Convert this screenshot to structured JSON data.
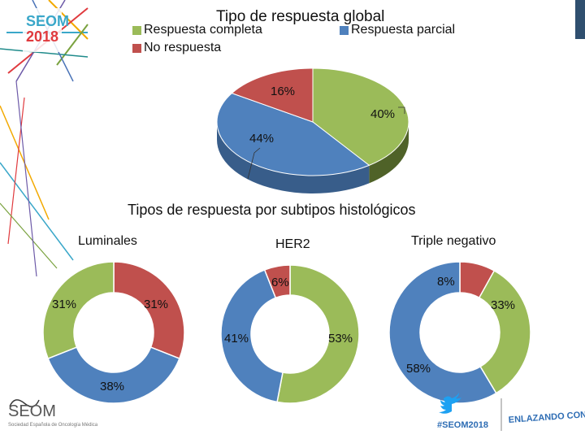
{
  "logos": {
    "seom_top_line1": "SEOM",
    "seom_top_line2": "2018",
    "seom_bottom": "SEOM",
    "seom_bottom_sub": "Sociedad Española de Oncología Médica",
    "hashtag": "#SEOM2018",
    "slogan": "ENLAZANDO CONOCIMIENTO"
  },
  "colors": {
    "green": "#9bbb59",
    "blue": "#4f81bd",
    "red": "#c0504d",
    "green_dark": "#4f6228",
    "blue_dark": "#385d8a"
  },
  "chart_data": [
    {
      "type": "pie",
      "title": "Tipo de respuesta global",
      "legend": [
        "Respuesta completa",
        "Respuesta parcial",
        "No respuesta"
      ],
      "slices": [
        {
          "name": "Respuesta completa",
          "value": 40,
          "label": "40%"
        },
        {
          "name": "Respuesta parcial",
          "value": 44,
          "label": "44%"
        },
        {
          "name": "No respuesta",
          "value": 16,
          "label": "16%"
        }
      ]
    },
    {
      "type": "pie",
      "title": "Luminales",
      "slices": [
        {
          "name": "No respuesta",
          "value": 31,
          "label": "31%"
        },
        {
          "name": "Respuesta parcial",
          "value": 38,
          "label": "38%"
        },
        {
          "name": "Respuesta completa",
          "value": 31,
          "label": "31%"
        }
      ]
    },
    {
      "type": "pie",
      "title": "HER2",
      "slices": [
        {
          "name": "Respuesta completa",
          "value": 53,
          "label": "53%"
        },
        {
          "name": "Respuesta parcial",
          "value": 41,
          "label": "41%"
        },
        {
          "name": "No respuesta",
          "value": 6,
          "label": "6%"
        }
      ]
    },
    {
      "type": "pie",
      "title": "Triple negativo",
      "slices": [
        {
          "name": "Respuesta completa",
          "value": 33,
          "label": "33%"
        },
        {
          "name": "Respuesta parcial",
          "value": 58,
          "label": "58%"
        },
        {
          "name": "No respuesta",
          "value": 8,
          "label": "8%"
        }
      ]
    }
  ],
  "section_title": "Tipos de respuesta por subtipos histológicos"
}
